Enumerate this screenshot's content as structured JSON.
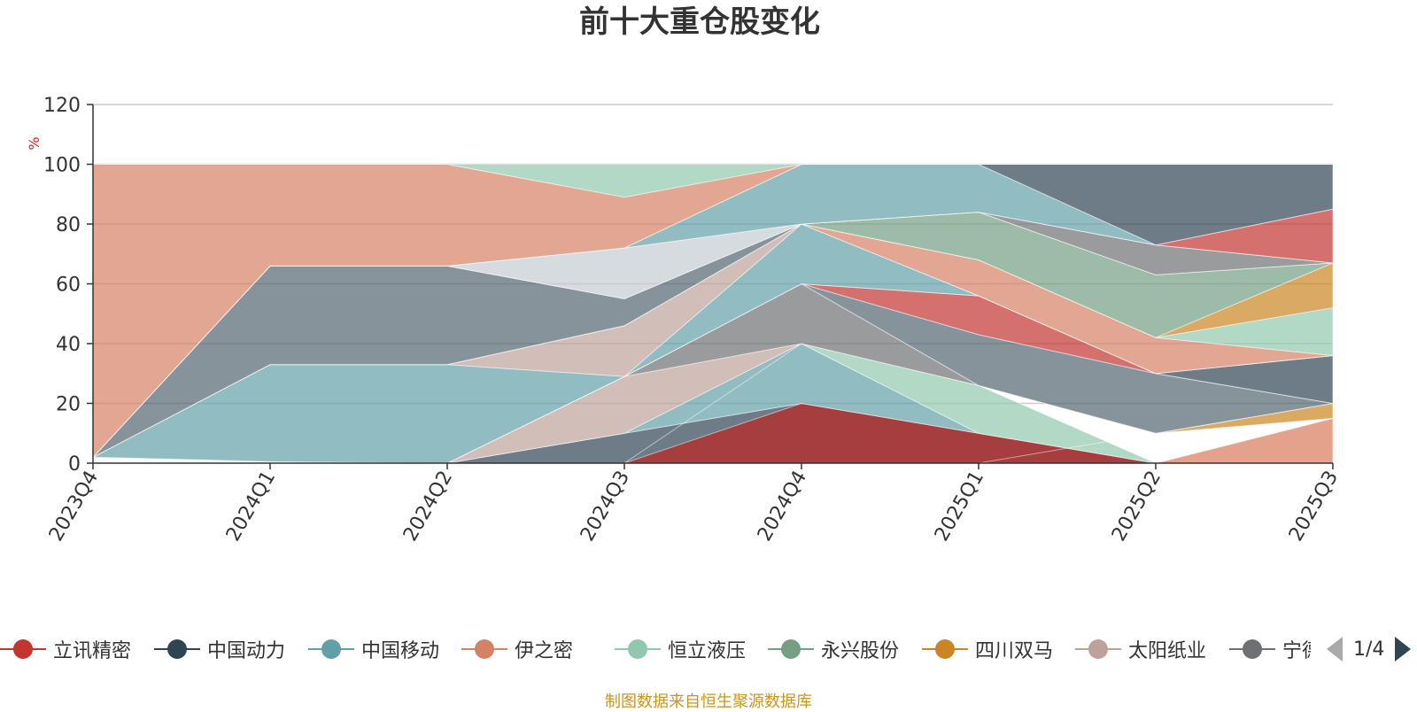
{
  "chart_data": {
    "type": "area",
    "title": "前十大重仓股变化",
    "ylabel": "%",
    "ylim": [
      0,
      120
    ],
    "yticks": [
      0,
      20,
      40,
      60,
      80,
      100,
      120
    ],
    "grid": true,
    "categories": [
      "2023Q4",
      "2024Q1",
      "2024Q2",
      "2024Q3",
      "2024Q4",
      "2025Q1",
      "2025Q2",
      "2025Q3"
    ],
    "layers": [
      {
        "color": "#d14a4a",
        "bottom": [
          0,
          0,
          0,
          0,
          0,
          0,
          0,
          0
        ],
        "top": [
          0,
          0,
          0,
          0,
          20,
          10,
          0,
          0
        ]
      },
      {
        "color": "#d87a5c",
        "bottom": [
          0,
          0,
          0,
          0,
          0,
          0,
          0,
          0
        ],
        "top": [
          0,
          0,
          0,
          0,
          0,
          0,
          0,
          15
        ]
      },
      {
        "color": "#2f4554",
        "bottom": [
          0,
          0,
          0,
          0,
          0,
          0,
          0,
          0
        ],
        "top": [
          0,
          0,
          0,
          10,
          20,
          10,
          0,
          0
        ]
      },
      {
        "color": "#c23531",
        "bottom": [
          0,
          0,
          0,
          0,
          0,
          0,
          0,
          0
        ],
        "top": [
          0,
          0,
          0,
          0,
          20,
          10,
          0,
          0
        ]
      },
      {
        "color": "#61a0a8",
        "bottom": [
          0,
          0,
          0,
          10,
          20,
          10,
          0,
          0
        ],
        "top": [
          0,
          0,
          0,
          10,
          40,
          10,
          0,
          0
        ]
      },
      {
        "color": "#91c7ae",
        "bottom": [
          0,
          0,
          0,
          0,
          40,
          10,
          0,
          15
        ],
        "top": [
          0,
          0,
          0,
          0,
          40,
          26,
          0,
          15
        ]
      },
      {
        "color": "#ca8622",
        "bottom": [
          0,
          0,
          0,
          0,
          0,
          0,
          10,
          15
        ],
        "top": [
          0,
          0,
          0,
          0,
          0,
          0,
          10,
          20
        ]
      },
      {
        "color": "#bda29a",
        "bottom": [
          1,
          0.5,
          0,
          10,
          40,
          26,
          10,
          20
        ],
        "top": [
          1,
          0.5,
          0,
          29,
          40,
          26,
          10,
          20
        ]
      },
      {
        "color": "#6e7074",
        "bottom": [
          1,
          0.5,
          0,
          29,
          40,
          26,
          10,
          20
        ],
        "top": [
          1,
          0.5,
          0,
          29,
          60,
          26,
          10,
          20
        ]
      },
      {
        "color": "#546570",
        "bottom": [
          2,
          0.5,
          0,
          29,
          60,
          26,
          10,
          20
        ],
        "top": [
          2,
          0.5,
          0,
          29,
          60,
          43,
          30,
          20
        ]
      },
      {
        "color": "#c23531",
        "bottom": [
          2,
          0.5,
          0,
          29,
          60,
          43,
          30,
          20
        ],
        "top": [
          2,
          0.5,
          0,
          29,
          60,
          56,
          30,
          20
        ]
      },
      {
        "color": "#2f4554",
        "bottom": [
          2,
          0.5,
          0,
          29,
          60,
          56,
          30,
          20
        ],
        "top": [
          2,
          0.5,
          0,
          29,
          60,
          56,
          30,
          36
        ]
      },
      {
        "color": "#61a0a8",
        "bottom": [
          2,
          0.5,
          0,
          29,
          60,
          56,
          30,
          36
        ],
        "top": [
          2,
          33,
          33,
          29,
          80,
          56,
          30,
          36
        ]
      },
      {
        "color": "#bda29a",
        "bottom": [
          2,
          33,
          33,
          29,
          80,
          56,
          30,
          36
        ],
        "top": [
          2,
          33,
          33,
          46,
          80,
          56,
          30,
          36
        ]
      },
      {
        "color": "#d48265",
        "bottom": [
          2,
          33,
          33,
          46,
          80,
          56,
          30,
          36
        ],
        "top": [
          2,
          33,
          33,
          46,
          80,
          68,
          42,
          36
        ]
      },
      {
        "color": "#91c7ae",
        "bottom": [
          2,
          33,
          33,
          46,
          80,
          68,
          42,
          36
        ],
        "top": [
          2,
          33,
          33,
          46,
          80,
          68,
          42,
          52
        ]
      },
      {
        "color": "#ca8622",
        "bottom": [
          2,
          33,
          33,
          46,
          80,
          68,
          42,
          52
        ],
        "top": [
          2,
          33,
          33,
          46,
          80,
          68,
          42,
          67
        ]
      },
      {
        "color": "#749f83",
        "bottom": [
          2,
          33,
          33,
          46,
          80,
          68,
          42,
          67
        ],
        "top": [
          2,
          33,
          33,
          46,
          80,
          84,
          63,
          67
        ]
      },
      {
        "color": "#546570",
        "bottom": [
          2,
          33,
          33,
          46,
          80,
          84,
          63,
          67
        ],
        "top": [
          2,
          66,
          66,
          55,
          80,
          84,
          63,
          67
        ]
      },
      {
        "color": "#6e7074",
        "bottom": [
          2,
          66,
          66,
          55,
          80,
          84,
          63,
          67
        ],
        "top": [
          2,
          66,
          66,
          55,
          80,
          84,
          73,
          67
        ]
      },
      {
        "color": "#c4ccd3",
        "bottom": [
          2,
          66,
          66,
          55,
          80,
          84,
          73,
          67
        ],
        "top": [
          2,
          66,
          66,
          72,
          80,
          84,
          73,
          67
        ]
      },
      {
        "color": "#c23531",
        "bottom": [
          2,
          66,
          66,
          72,
          80,
          84,
          73,
          67
        ],
        "top": [
          2,
          66,
          66,
          72,
          80,
          84,
          73,
          85
        ]
      },
      {
        "color": "#61a0a8",
        "bottom": [
          2,
          66,
          66,
          72,
          80,
          84,
          73,
          85
        ],
        "top": [
          2,
          66,
          66,
          72,
          100,
          100,
          73,
          85
        ]
      },
      {
        "color": "#2f4554",
        "bottom": [
          2,
          66,
          66,
          72,
          100,
          100,
          73,
          85
        ],
        "top": [
          2,
          66,
          66,
          72,
          100,
          100,
          100,
          100
        ]
      },
      {
        "color": "#d48265",
        "bottom": [
          2,
          66,
          66,
          72,
          100,
          100,
          100,
          100
        ],
        "top": [
          100,
          100,
          100,
          89,
          100,
          100,
          100,
          100
        ]
      },
      {
        "color": "#91c7ae",
        "bottom": [
          100,
          100,
          100,
          89,
          100,
          100,
          100,
          100
        ],
        "top": [
          100,
          100,
          100,
          100,
          100,
          100,
          100,
          100
        ]
      }
    ],
    "legend": [
      {
        "name": "立讯精密",
        "color": "#c23531"
      },
      {
        "name": "中国动力",
        "color": "#2f4554"
      },
      {
        "name": "中国移动",
        "color": "#61a0a8"
      },
      {
        "name": "伊之密",
        "color": "#d48265"
      },
      {
        "name": "恒立液压",
        "color": "#91c7ae"
      },
      {
        "name": "永兴股份",
        "color": "#749f83"
      },
      {
        "name": "四川双马",
        "color": "#ca8622"
      },
      {
        "name": "太阳纸业",
        "color": "#bda29a"
      },
      {
        "name": "宁德时代",
        "color": "#6e7074"
      }
    ]
  },
  "legend_pager": {
    "text": "1/4"
  },
  "source_note": "制图数据来自恒生聚源数据库"
}
